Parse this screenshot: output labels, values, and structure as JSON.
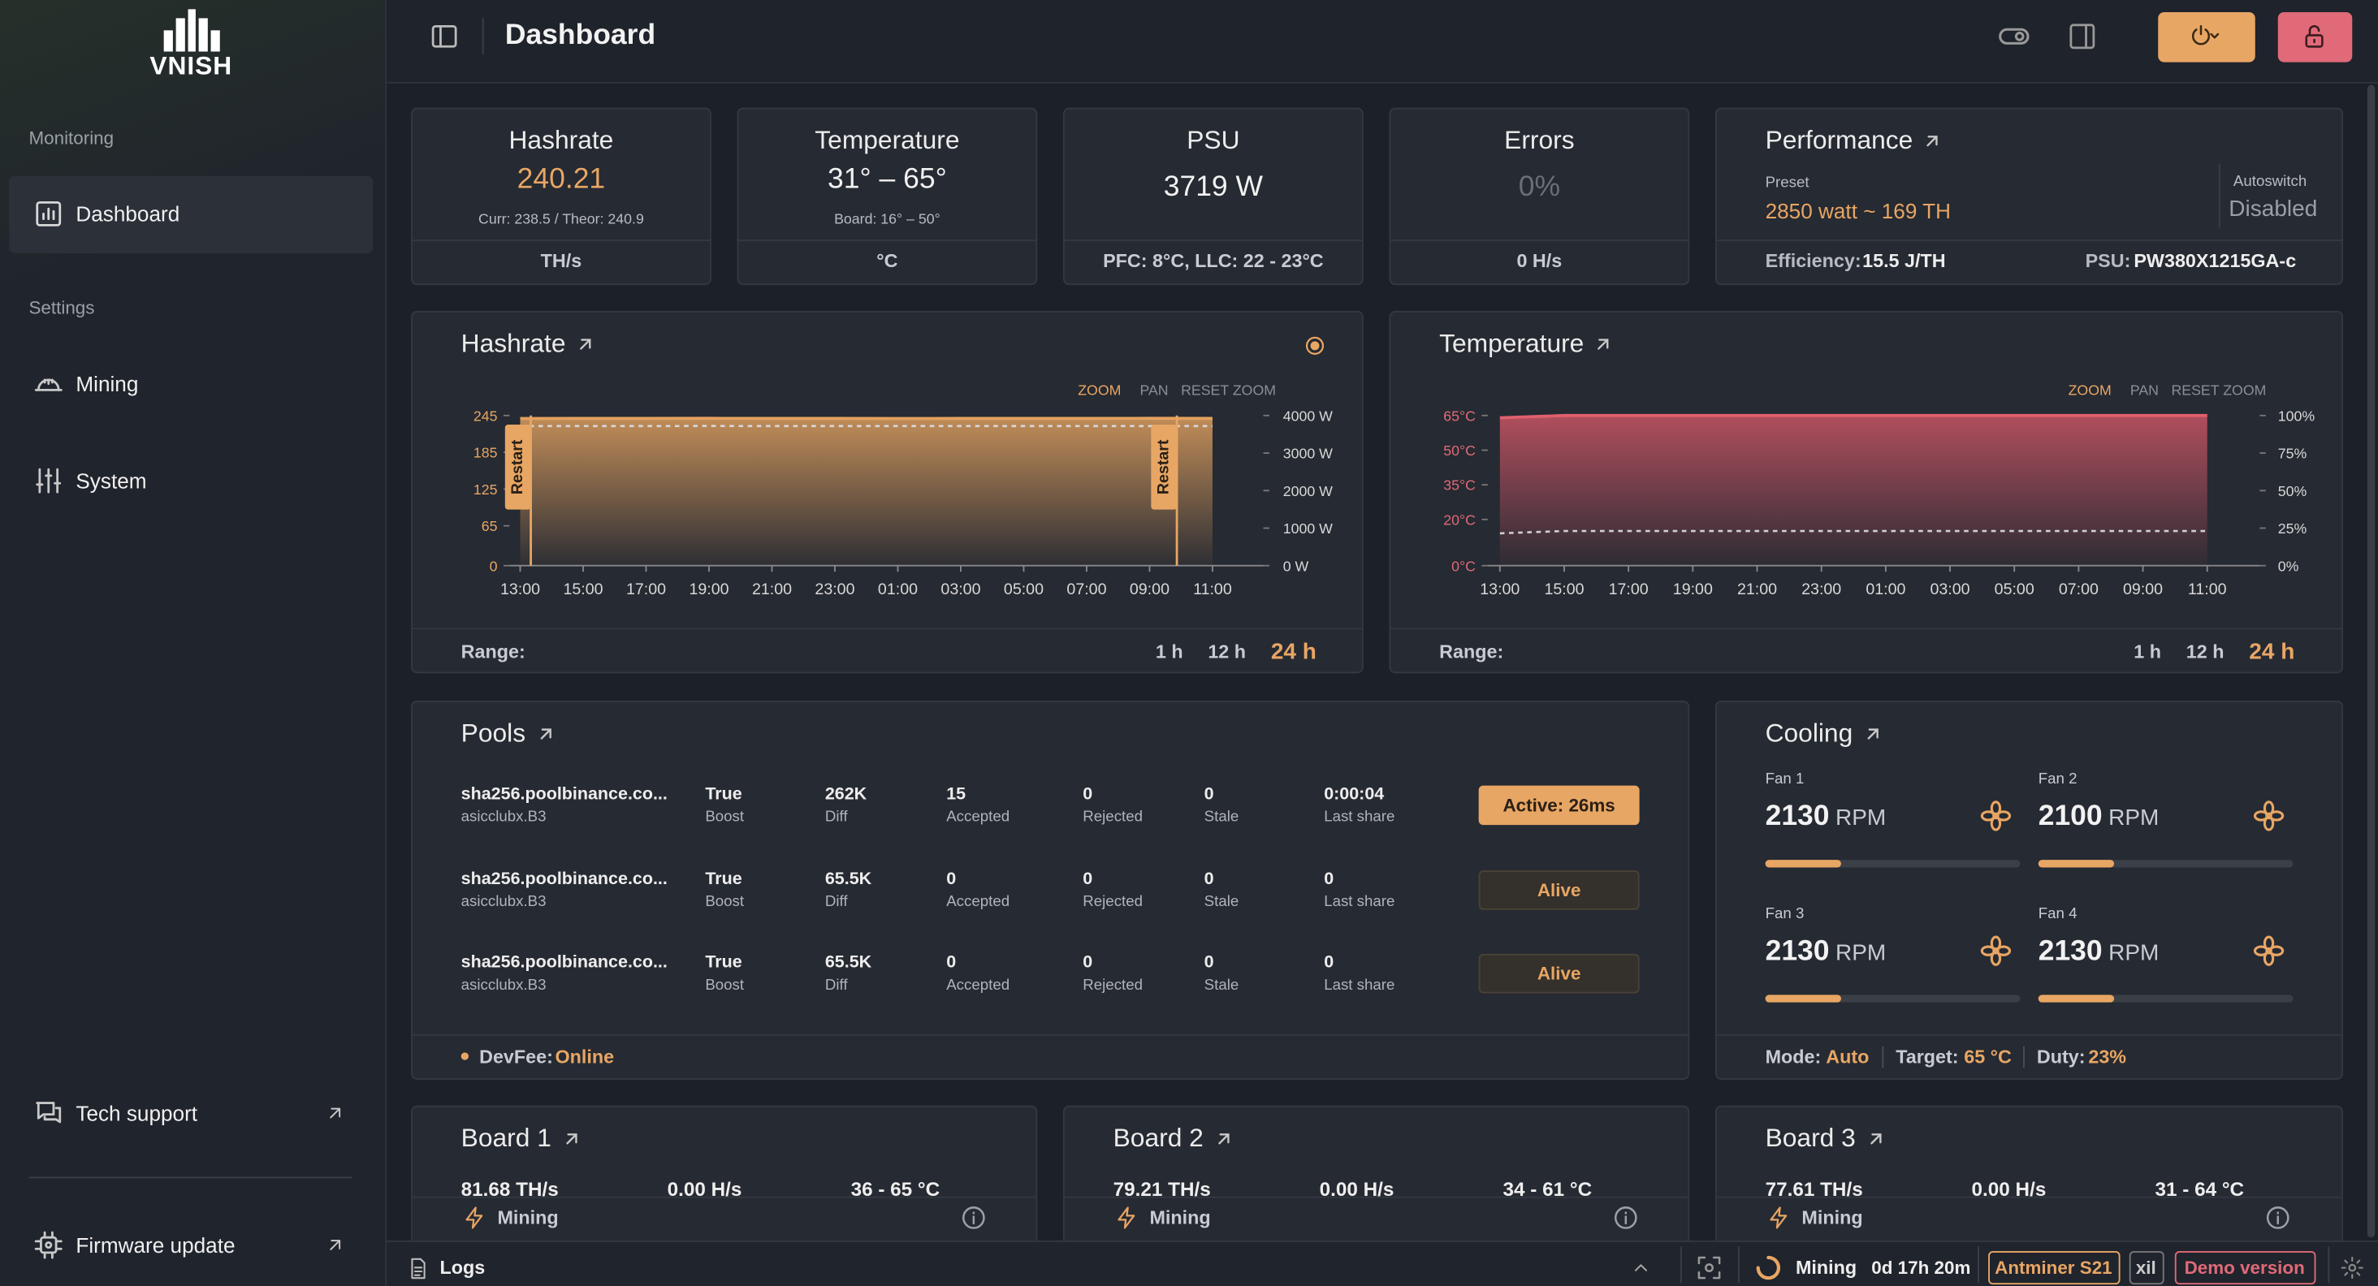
{
  "sidebar": {
    "logo": "VNISH",
    "monitoring": "Monitoring",
    "dashboard": "Dashboard",
    "settings": "Settings",
    "mining": "Mining",
    "system": "System",
    "tech_support": "Tech support",
    "firmware_update": "Firmware update"
  },
  "header": {
    "title": "Dashboard"
  },
  "stats": [
    {
      "title": "Hashrate",
      "value": "240.21",
      "sub": "Curr: 238.5 / Theor: 240.9",
      "footer": "TH/s"
    },
    {
      "title": "Temperature",
      "value": "31° – 65°",
      "sub": "Board: 16° – 50°",
      "footer": "°C"
    },
    {
      "title": "PSU",
      "value": "3719 W",
      "footer": "PFC: 8°C, LLC: 22 - 23°C"
    },
    {
      "title": "Errors",
      "value": "0%",
      "footer": "0 H/s"
    }
  ],
  "performance": {
    "title": "Performance",
    "preset_label": "Preset",
    "preset": "2850 watt ~ 169 TH",
    "autoswitch_label": "Autoswitch",
    "autoswitch": "Disabled",
    "efficiency_label": "Efficiency:",
    "efficiency": "15.5 J/TH",
    "psu_label": "PSU:",
    "psu": "PW380X1215GA-c"
  },
  "hashrate_chart": {
    "type": "line",
    "title": "Hashrate",
    "controls": [
      "ZOOM",
      "PAN",
      "RESET ZOOM"
    ],
    "categories": [
      "13:00",
      "15:00",
      "17:00",
      "19:00",
      "21:00",
      "23:00",
      "01:00",
      "03:00",
      "05:00",
      "07:00",
      "09:00",
      "11:00"
    ],
    "series": [
      {
        "color": "#e3a15f",
        "fill": true,
        "values": [
          240.1,
          240.3,
          240.2,
          240.4,
          240.2,
          240.3,
          240.1,
          240.2,
          240.3,
          240.2,
          240.4,
          240.2
        ]
      },
      {
        "color": "#d8d8d8",
        "style": "dashed",
        "axis": "y2",
        "values": [
          3718,
          3720,
          3719,
          3721,
          3719,
          3718,
          3720,
          3719,
          3719,
          3720,
          3718,
          3719
        ]
      }
    ],
    "ylim": [
      0,
      245
    ],
    "yticks": [
      0,
      65,
      125,
      185,
      245
    ],
    "y2lim": [
      0,
      4000
    ],
    "y2ticks": [
      {
        "value": 0,
        "label": "0 W"
      },
      {
        "value": 1000,
        "label": "1000 W"
      },
      {
        "value": 2000,
        "label": "2000 W"
      },
      {
        "value": 3000,
        "label": "3000 W"
      },
      {
        "value": 4000,
        "label": "4000 W"
      }
    ],
    "annotations": [
      "Restart",
      "Restart"
    ],
    "range_label": "Range:",
    "ranges": [
      "1 h",
      "12 h",
      "24 h"
    ]
  },
  "temperature_chart": {
    "type": "line",
    "title": "Temperature",
    "controls": [
      "ZOOM",
      "PAN",
      "RESET ZOOM"
    ],
    "categories": [
      "13:00",
      "15:00",
      "17:00",
      "19:00",
      "21:00",
      "23:00",
      "01:00",
      "03:00",
      "05:00",
      "07:00",
      "09:00",
      "11:00"
    ],
    "series": [
      {
        "color": "#e0606e",
        "fill": true,
        "values": [
          64,
          65,
          65,
          65,
          65,
          65,
          65,
          65,
          65,
          65,
          65,
          65
        ]
      },
      {
        "color": "#d0d0d0",
        "style": "dashed",
        "values": [
          14,
          15,
          15,
          15,
          15,
          15,
          15,
          15,
          15,
          15,
          15,
          15
        ]
      }
    ],
    "ylim": [
      0,
      65
    ],
    "yticks": [
      {
        "value": 0,
        "label": "0°C"
      },
      {
        "value": 20,
        "label": "20°C"
      },
      {
        "value": 35,
        "label": "35°C"
      },
      {
        "value": 50,
        "label": "50°C"
      },
      {
        "value": 65,
        "label": "65°C"
      }
    ],
    "y2lim": [
      0,
      100
    ],
    "y2ticks": [
      {
        "value": 0,
        "label": "0%"
      },
      {
        "value": 25,
        "label": "25%"
      },
      {
        "value": 50,
        "label": "50%"
      },
      {
        "value": 75,
        "label": "75%"
      },
      {
        "value": 100,
        "label": "100%"
      }
    ],
    "range_label": "Range:",
    "ranges": [
      "1 h",
      "12 h",
      "24 h"
    ]
  },
  "pools": {
    "title": "Pools",
    "rows": [
      {
        "url": "sha256.poolbinance.co...",
        "user": "asicclubx.B3",
        "boost": "True",
        "boost_label": "Boost",
        "diff": "262K",
        "diff_label": "Diff",
        "accepted": "15",
        "accepted_label": "Accepted",
        "rejected": "0",
        "rejected_label": "Rejected",
        "stale": "0",
        "stale_label": "Stale",
        "last_share": "0:00:04",
        "last_share_label": "Last share",
        "status": "Active: 26ms"
      },
      {
        "url": "sha256.poolbinance.co...",
        "user": "asicclubx.B3",
        "boost": "True",
        "boost_label": "Boost",
        "diff": "65.5K",
        "diff_label": "Diff",
        "accepted": "0",
        "accepted_label": "Accepted",
        "rejected": "0",
        "rejected_label": "Rejected",
        "stale": "0",
        "stale_label": "Stale",
        "last_share": "0",
        "last_share_label": "Last share",
        "status": "Alive"
      },
      {
        "url": "sha256.poolbinance.co...",
        "user": "asicclubx.B3",
        "boost": "True",
        "boost_label": "Boost",
        "diff": "65.5K",
        "diff_label": "Diff",
        "accepted": "0",
        "accepted_label": "Accepted",
        "rejected": "0",
        "rejected_label": "Rejected",
        "stale": "0",
        "stale_label": "Stale",
        "last_share": "0",
        "last_share_label": "Last share",
        "status": "Alive"
      }
    ],
    "devfee_label": "DevFee:",
    "devfee": "Online"
  },
  "cooling": {
    "title": "Cooling",
    "fans": [
      {
        "label": "Fan 1",
        "rpm": "2130",
        "unit": "RPM"
      },
      {
        "label": "Fan 2",
        "rpm": "2100",
        "unit": "RPM"
      },
      {
        "label": "Fan 3",
        "rpm": "2130",
        "unit": "RPM"
      },
      {
        "label": "Fan 4",
        "rpm": "2130",
        "unit": "RPM"
      }
    ],
    "mode_label": "Mode:",
    "mode": "Auto",
    "target_label": "Target:",
    "target": "65 °C",
    "duty_label": "Duty:",
    "duty": "23%"
  },
  "boards": [
    {
      "title": "Board 1",
      "hashrate": "81.68 TH/s",
      "errors": "0.00 H/s",
      "temp": "36 - 65 °C",
      "status": "Mining"
    },
    {
      "title": "Board 2",
      "hashrate": "79.21 TH/s",
      "errors": "0.00 H/s",
      "temp": "34 - 61 °C",
      "status": "Mining"
    },
    {
      "title": "Board 3",
      "hashrate": "77.61 TH/s",
      "errors": "0.00 H/s",
      "temp": "31 - 64 °C",
      "status": "Mining"
    }
  ],
  "footer": {
    "logs": "Logs",
    "state": "Mining",
    "uptime": "0d 17h 20m",
    "model": "Antminer S21",
    "tag": "xil",
    "demo": "Demo version"
  }
}
